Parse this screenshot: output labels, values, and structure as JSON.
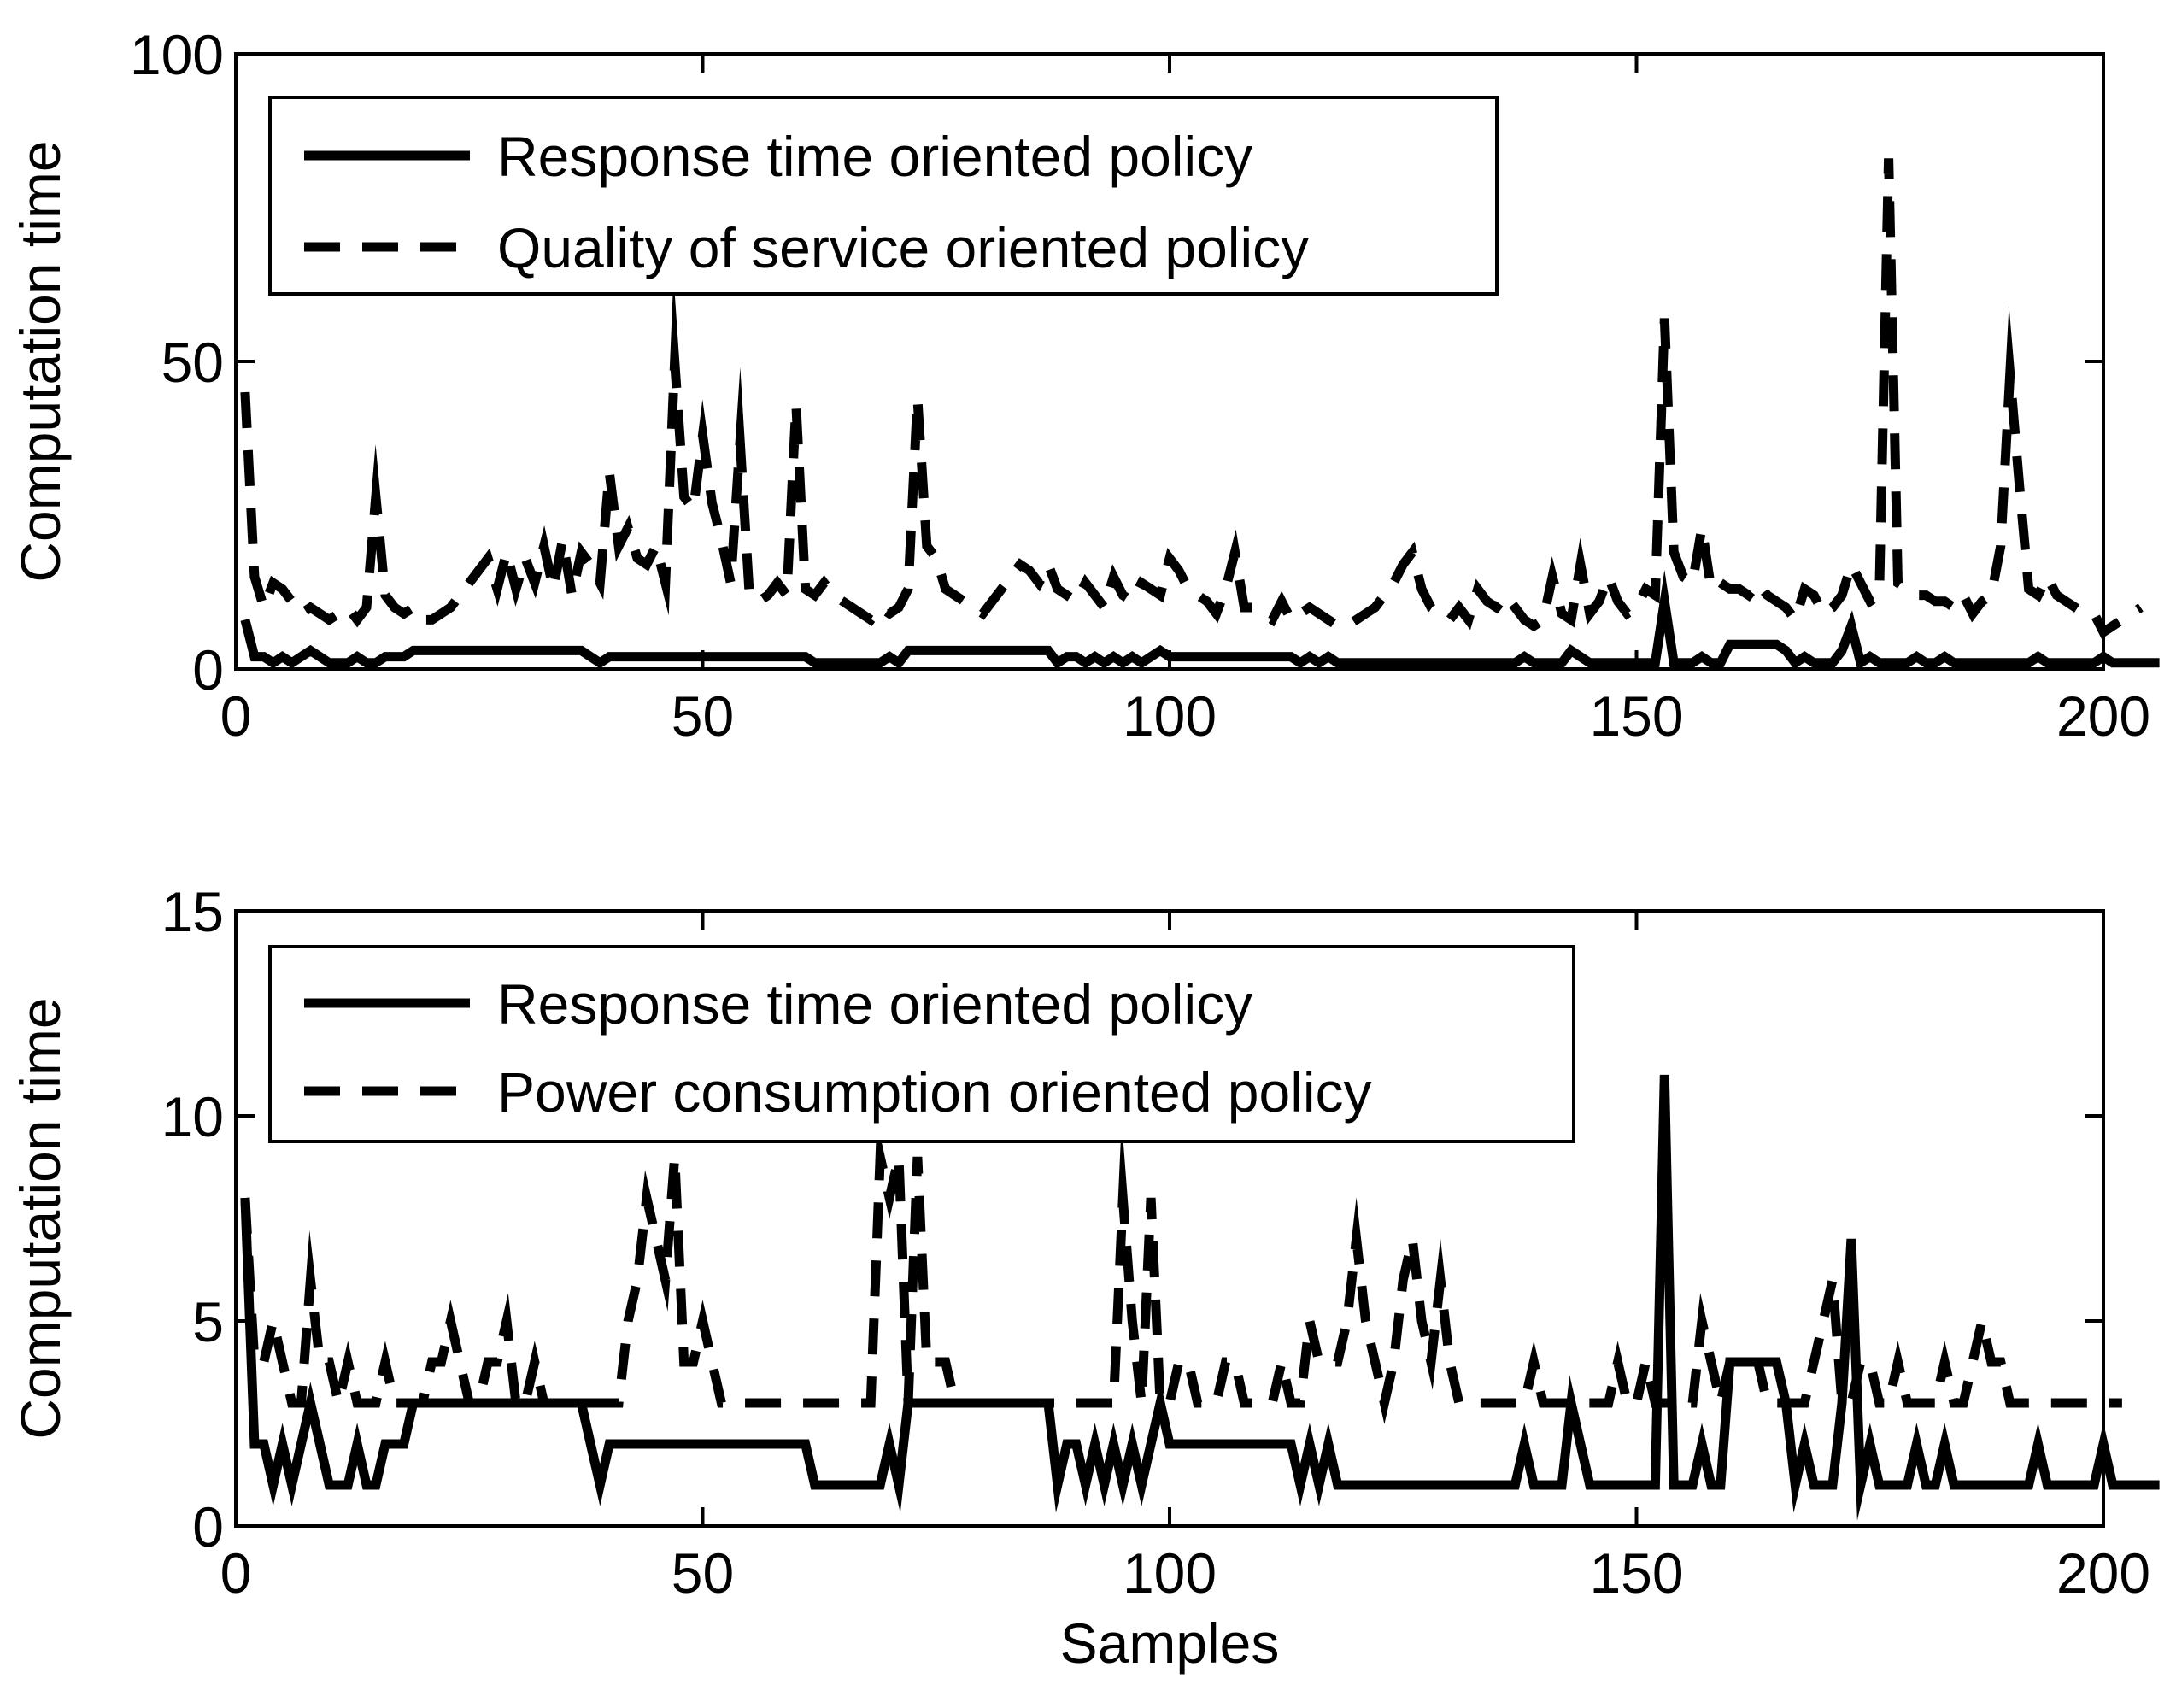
{
  "chart_data": [
    {
      "type": "line",
      "title": "",
      "xlabel": "",
      "ylabel": "Computation time",
      "xlim": [
        0,
        200
      ],
      "ylim": [
        0,
        100
      ],
      "xticks": [
        "0",
        "50",
        "100",
        "150",
        "200"
      ],
      "yticks": [
        "0",
        "50",
        "100"
      ],
      "legend_position": "top-left",
      "series": [
        {
          "name": "Response time oriented policy",
          "style": "solid",
          "values": [
            8,
            2,
            2,
            1,
            2,
            1,
            2,
            3,
            2,
            1,
            1,
            1,
            2,
            1,
            1,
            2,
            2,
            2,
            3,
            3,
            3,
            3,
            3,
            3,
            3,
            3,
            3,
            3,
            3,
            3,
            3,
            3,
            3,
            3,
            3,
            3,
            3,
            2,
            1,
            2,
            2,
            2,
            2,
            2,
            2,
            2,
            2,
            2,
            2,
            2,
            2,
            2,
            2,
            2,
            2,
            2,
            2,
            2,
            2,
            2,
            2,
            1,
            1,
            1,
            1,
            1,
            1,
            1,
            1,
            2,
            1,
            3,
            3,
            3,
            3,
            3,
            3,
            3,
            3,
            3,
            3,
            3,
            3,
            3,
            3,
            3,
            3,
            1,
            2,
            2,
            1,
            2,
            1,
            2,
            1,
            2,
            1,
            2,
            3,
            2,
            2,
            2,
            2,
            2,
            2,
            2,
            2,
            2,
            2,
            2,
            2,
            2,
            2,
            1,
            2,
            1,
            2,
            1,
            1,
            1,
            1,
            1,
            1,
            1,
            1,
            1,
            1,
            1,
            1,
            1,
            1,
            1,
            1,
            1,
            1,
            1,
            1,
            2,
            1,
            1,
            1,
            1,
            3,
            2,
            1,
            1,
            1,
            1,
            1,
            1,
            1,
            1,
            11,
            1,
            1,
            1,
            2,
            1,
            1,
            4,
            4,
            4,
            4,
            4,
            4,
            3,
            1,
            2,
            1,
            1,
            1,
            3,
            7,
            1,
            2,
            1,
            1,
            1,
            1,
            2,
            1,
            1,
            2,
            1,
            1,
            1,
            1,
            1,
            1,
            1,
            1,
            1,
            2,
            1,
            1,
            1,
            1,
            1,
            1,
            2,
            1,
            1,
            1,
            1,
            1,
            1
          ]
        },
        {
          "name": "Quality of service oriented policy",
          "style": "dashed",
          "values": [
            45,
            15,
            10,
            14,
            13,
            11,
            9,
            10,
            9,
            8,
            9,
            10,
            8,
            10,
            28,
            12,
            10,
            9,
            10,
            8,
            8,
            9,
            10,
            12,
            14,
            16,
            18,
            13,
            19,
            13,
            18,
            14,
            20,
            13,
            21,
            12,
            19,
            17,
            14,
            32,
            20,
            23,
            18,
            17,
            20,
            14,
            50,
            28,
            26,
            38,
            27,
            21,
            14,
            37,
            12,
            11,
            12,
            14,
            12,
            43,
            13,
            12,
            14,
            12,
            11,
            10,
            9,
            8,
            10,
            9,
            10,
            13,
            44,
            20,
            18,
            13,
            12,
            11,
            10,
            9,
            11,
            13,
            15,
            17,
            16,
            14,
            17,
            13,
            12,
            11,
            14,
            12,
            10,
            15,
            12,
            11,
            14,
            13,
            12,
            18,
            16,
            13,
            12,
            11,
            9,
            13,
            19,
            10,
            10,
            9,
            8,
            11,
            8,
            9,
            10,
            9,
            8,
            7,
            7,
            8,
            9,
            10,
            12,
            14,
            17,
            19,
            13,
            10,
            9,
            8,
            10,
            8,
            13,
            11,
            10,
            12,
            10,
            8,
            7,
            8,
            15,
            9,
            8,
            17,
            9,
            11,
            15,
            11,
            9,
            10,
            13,
            12,
            57,
            19,
            15,
            14,
            23,
            13,
            14,
            13,
            13,
            12,
            14,
            12,
            11,
            10,
            8,
            13,
            12,
            9,
            10,
            12,
            17,
            14,
            11,
            12,
            83,
            14,
            13,
            12,
            12,
            11,
            11,
            10,
            12,
            9,
            11,
            12,
            20,
            48,
            30,
            13,
            12,
            15,
            12,
            11,
            10,
            9,
            9,
            6,
            7,
            8,
            9,
            10
          ]
        }
      ]
    },
    {
      "type": "line",
      "title": "",
      "xlabel": "Samples",
      "ylabel": "Computation time",
      "xlim": [
        0,
        200
      ],
      "ylim": [
        0,
        15
      ],
      "xticks": [
        "0",
        "50",
        "100",
        "150",
        "200"
      ],
      "yticks": [
        "0",
        "5",
        "10",
        "15"
      ],
      "legend_position": "top-left",
      "series": [
        {
          "name": "Response time oriented policy",
          "style": "solid",
          "values": [
            8,
            2,
            2,
            1,
            2,
            1,
            2,
            3,
            2,
            1,
            1,
            1,
            2,
            1,
            1,
            2,
            2,
            2,
            3,
            3,
            3,
            3,
            3,
            3,
            3,
            3,
            3,
            3,
            3,
            3,
            3,
            3,
            3,
            3,
            3,
            3,
            3,
            2,
            1,
            2,
            2,
            2,
            2,
            2,
            2,
            2,
            2,
            2,
            2,
            2,
            2,
            2,
            2,
            2,
            2,
            2,
            2,
            2,
            2,
            2,
            2,
            1,
            1,
            1,
            1,
            1,
            1,
            1,
            1,
            2,
            1,
            3,
            3,
            3,
            3,
            3,
            3,
            3,
            3,
            3,
            3,
            3,
            3,
            3,
            3,
            3,
            3,
            1,
            2,
            2,
            1,
            2,
            1,
            2,
            1,
            2,
            1,
            2,
            3,
            2,
            2,
            2,
            2,
            2,
            2,
            2,
            2,
            2,
            2,
            2,
            2,
            2,
            2,
            1,
            2,
            1,
            2,
            1,
            1,
            1,
            1,
            1,
            1,
            1,
            1,
            1,
            1,
            1,
            1,
            1,
            1,
            1,
            1,
            1,
            1,
            1,
            1,
            2,
            1,
            1,
            1,
            1,
            3,
            2,
            1,
            1,
            1,
            1,
            1,
            1,
            1,
            1,
            11,
            1,
            1,
            1,
            2,
            1,
            1,
            4,
            4,
            4,
            4,
            4,
            4,
            3,
            1,
            2,
            1,
            1,
            1,
            3,
            7,
            1,
            2,
            1,
            1,
            1,
            1,
            2,
            1,
            1,
            2,
            1,
            1,
            1,
            1,
            1,
            1,
            1,
            1,
            1,
            2,
            1,
            1,
            1,
            1,
            1,
            1,
            2,
            1,
            1,
            1,
            1,
            1,
            1
          ]
        },
        {
          "name": "Power consumption oriented policy",
          "style": "dashed",
          "values": [
            8,
            4,
            4,
            5,
            4,
            3,
            3,
            6,
            4,
            4,
            3,
            4,
            3,
            3,
            3,
            4,
            3,
            3,
            3,
            3,
            4,
            4,
            5,
            4,
            3,
            3,
            4,
            4,
            5,
            3,
            3,
            4,
            3,
            3,
            3,
            3,
            3,
            3,
            3,
            3,
            3,
            5,
            6,
            8,
            7,
            6,
            9,
            4,
            4,
            5,
            4,
            3,
            3,
            3,
            3,
            3,
            3,
            3,
            3,
            3,
            3,
            3,
            3,
            3,
            3,
            3,
            3,
            3,
            9,
            8,
            9,
            3,
            9,
            4,
            4,
            4,
            3,
            3,
            3,
            3,
            3,
            3,
            3,
            3,
            3,
            3,
            3,
            3,
            3,
            3,
            3,
            3,
            3,
            3,
            8,
            5,
            3,
            8,
            3,
            3,
            4,
            4,
            3,
            3,
            3,
            4,
            4,
            3,
            3,
            3,
            3,
            4,
            3,
            3,
            5,
            4,
            4,
            4,
            5,
            7,
            5,
            4,
            3,
            4,
            6,
            7,
            5,
            4,
            6,
            4,
            3,
            3,
            3,
            3,
            3,
            3,
            3,
            3,
            4,
            3,
            3,
            3,
            3,
            3,
            3,
            3,
            3,
            4,
            3,
            3,
            4,
            3,
            3,
            3,
            3,
            3,
            5,
            4,
            3,
            4,
            4,
            4,
            4,
            3,
            3,
            3,
            3,
            3,
            4,
            5,
            6,
            3,
            3,
            4,
            4,
            3,
            3,
            4,
            3,
            3,
            3,
            3,
            4,
            3,
            3,
            4,
            5,
            4,
            4,
            3,
            3,
            3,
            3,
            3,
            3,
            3,
            3,
            3,
            3,
            3,
            3,
            3
          ]
        }
      ]
    }
  ]
}
